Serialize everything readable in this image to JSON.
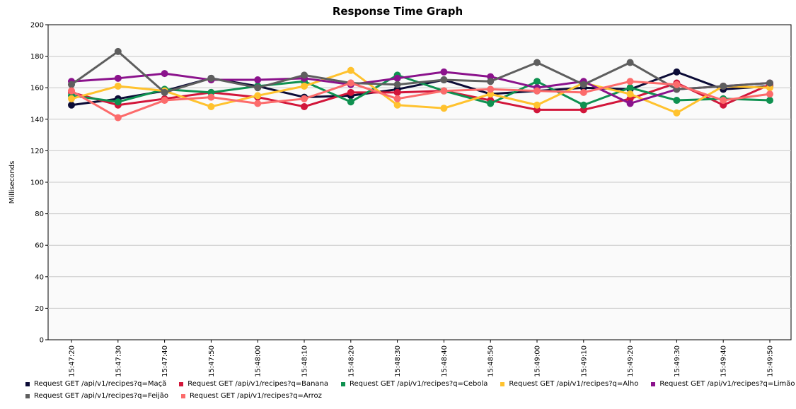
{
  "chart_data": {
    "type": "line",
    "title": "Response Time Graph",
    "xlabel": "",
    "ylabel": "Milliseconds",
    "ylim": [
      0,
      200
    ],
    "yticks": [
      0,
      20,
      40,
      60,
      80,
      100,
      120,
      140,
      160,
      180,
      200
    ],
    "categories": [
      "15:47:20",
      "15:47:30",
      "15:47:40",
      "15:47:50",
      "15:48:00",
      "15:48:10",
      "15:48:20",
      "15:48:30",
      "15:48:40",
      "15:48:50",
      "15:49:00",
      "15:49:10",
      "15:49:20",
      "15:49:30",
      "15:49:40",
      "15:49:50"
    ],
    "grid": "horizontal",
    "legend_position": "bottom",
    "series": [
      {
        "name": "Request GET /api/v1/recipes?q=Maçã",
        "color": "#0b0b36",
        "values": [
          149,
          153,
          158,
          166,
          161,
          154,
          155,
          159,
          165,
          156,
          158,
          160,
          159,
          170,
          159,
          161
        ]
      },
      {
        "name": "Request GET /api/v1/recipes?q=Banana",
        "color": "#d2163a",
        "values": [
          157,
          149,
          153,
          157,
          154,
          148,
          157,
          157,
          158,
          152,
          146,
          146,
          153,
          163,
          149,
          162
        ]
      },
      {
        "name": "Request GET /api/v1/recipes?q=Cebola",
        "color": "#0f9150",
        "values": [
          155,
          151,
          159,
          157,
          161,
          164,
          151,
          168,
          158,
          150,
          164,
          149,
          160,
          152,
          153,
          152
        ]
      },
      {
        "name": "Request GET /api/v1/recipes?q=Alho",
        "color": "#ffc22e",
        "values": [
          153,
          161,
          158,
          148,
          155,
          161,
          171,
          149,
          147,
          156,
          149,
          163,
          156,
          144,
          161,
          160
        ]
      },
      {
        "name": "Request GET /api/v1/recipes?q=Limão",
        "color": "#8b128c",
        "values": [
          164,
          166,
          169,
          165,
          165,
          166,
          162,
          166,
          170,
          167,
          160,
          164,
          150,
          159,
          161,
          163
        ]
      },
      {
        "name": "Request GET /api/v1/recipes?q=Feijão",
        "color": "#5e5e5e",
        "values": [
          162,
          183,
          157,
          166,
          160,
          168,
          163,
          162,
          165,
          164,
          176,
          162,
          176,
          159,
          161,
          163
        ]
      },
      {
        "name": "Request GET /api/v1/recipes?q=Arroz",
        "color": "#fc6b6b",
        "values": [
          158,
          141,
          152,
          154,
          150,
          153,
          163,
          153,
          158,
          159,
          158,
          157,
          164,
          162,
          152,
          156
        ]
      }
    ]
  }
}
